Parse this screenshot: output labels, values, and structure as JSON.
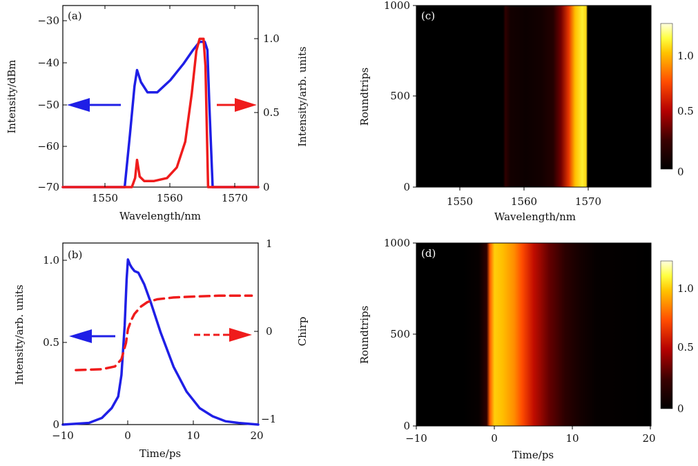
{
  "colors": {
    "blue": "#1f1fe6",
    "red": "#ef1c1c"
  },
  "panels": {
    "a": {
      "label": "(a)",
      "xlabel": "Wavelength/nm",
      "ylabel_left": "Intensity/dBm",
      "ylabel_right": "Intensity/arb. units",
      "xticks": [
        "1550",
        "1560",
        "1570"
      ],
      "yticks_left": [
        "−30",
        "−40",
        "−50",
        "−60",
        "−70"
      ],
      "yticks_right": [
        "1.0",
        "0.5",
        "0"
      ]
    },
    "b": {
      "label": "(b)",
      "xlabel": "Time/ps",
      "ylabel_left": "Intensity/arb. units",
      "ylabel_right": "Chirp",
      "xticks": [
        "−10",
        "0",
        "10",
        "20"
      ],
      "yticks_left": [
        "1.0",
        "0.5",
        "0"
      ],
      "yticks_right": [
        "1",
        "0",
        "−1"
      ]
    },
    "c": {
      "label": "(c)",
      "xlabel": "Wavelength/nm",
      "ylabel": "Roundtrips",
      "xticks": [
        "1550",
        "1560",
        "1570"
      ],
      "yticks": [
        "1000",
        "500",
        "0"
      ],
      "cbar_ticks": [
        "1.0",
        "0.5",
        "0"
      ]
    },
    "d": {
      "label": "(d)",
      "xlabel": "Time/ps",
      "ylabel": "Roundtrips",
      "xticks": [
        "−10",
        "0",
        "10",
        "20"
      ],
      "yticks": [
        "1000",
        "500",
        "0"
      ],
      "cbar_ticks": [
        "1.0",
        "0.5",
        "0"
      ]
    }
  },
  "chart_data": [
    {
      "panel": "a",
      "type": "line",
      "xlim": [
        1545,
        1575
      ],
      "ylim_left": [
        -70,
        -25
      ],
      "ylim_right": [
        0,
        1.2
      ],
      "series": [
        {
          "axis": "left",
          "color": "blue",
          "x": [
            1545,
            1554.5,
            1555.3,
            1556.0,
            1556.4,
            1557.0,
            1558.0,
            1559.5,
            1561.5,
            1563.5,
            1565.0,
            1566.0,
            1566.8,
            1567.2,
            1567.5,
            1568.0,
            1575
          ],
          "y": [
            -70,
            -70,
            -57,
            -45,
            -41,
            -44,
            -46.5,
            -46.5,
            -43.5,
            -39.5,
            -36,
            -34,
            -34,
            -36,
            -50,
            -70,
            -70
          ]
        },
        {
          "axis": "right",
          "color": "red",
          "x": [
            1545,
            1555.6,
            1556.1,
            1556.4,
            1556.8,
            1557.5,
            1559.0,
            1561.0,
            1562.5,
            1563.8,
            1564.8,
            1565.5,
            1566.0,
            1566.6,
            1566.9,
            1567.3,
            1575
          ],
          "y": [
            0,
            0,
            0.06,
            0.18,
            0.07,
            0.04,
            0.04,
            0.06,
            0.13,
            0.3,
            0.62,
            0.9,
            0.98,
            0.98,
            0.8,
            0,
            0
          ]
        }
      ]
    },
    {
      "panel": "b",
      "type": "line",
      "xlim": [
        -10,
        20
      ],
      "ylim_left": [
        0,
        1.1
      ],
      "ylim_right": [
        -1,
        1
      ],
      "series": [
        {
          "axis": "left",
          "color": "blue",
          "dash": false,
          "x": [
            -10,
            -6,
            -4,
            -2.5,
            -1.5,
            -1.0,
            -0.5,
            -0.2,
            0.0,
            0.3,
            0.6,
            1.0,
            1.6,
            2.5,
            3.5,
            5,
            7,
            9,
            11,
            13,
            15,
            17,
            20
          ],
          "y": [
            0,
            0.01,
            0.04,
            0.1,
            0.17,
            0.3,
            0.6,
            0.88,
            1.0,
            0.97,
            0.95,
            0.93,
            0.92,
            0.85,
            0.74,
            0.56,
            0.35,
            0.2,
            0.1,
            0.05,
            0.02,
            0.01,
            0
          ]
        },
        {
          "axis": "right",
          "color": "red",
          "dash": true,
          "x": [
            -8,
            -4,
            -2,
            -1,
            -0.3,
            0.0,
            0.5,
            1.0,
            2.0,
            3.0,
            4.5,
            7,
            10,
            14,
            19
          ],
          "y": [
            -0.4,
            -0.39,
            -0.36,
            -0.28,
            -0.1,
            0.05,
            0.15,
            0.22,
            0.3,
            0.35,
            0.38,
            0.4,
            0.41,
            0.42,
            0.42
          ]
        }
      ]
    },
    {
      "panel": "c",
      "type": "heatmap",
      "xlim": [
        1545,
        1575
      ],
      "ylim": [
        0,
        1000
      ],
      "profile_x": [
        1545,
        1556.1,
        1556.4,
        1557,
        1559,
        1561,
        1562.5,
        1563.5,
        1564.5,
        1565.3,
        1566.2,
        1566.7,
        1566.9,
        1575
      ],
      "profile_v": [
        0,
        0,
        0.2,
        0.08,
        0.05,
        0.08,
        0.15,
        0.35,
        0.65,
        0.95,
        1.05,
        1.0,
        0,
        0
      ],
      "clim": [
        0,
        1.2
      ]
    },
    {
      "panel": "d",
      "type": "heatmap",
      "xlim": [
        -10,
        20
      ],
      "ylim": [
        0,
        1000
      ],
      "profile_x": [
        -10,
        -4,
        -2,
        -1.0,
        -0.6,
        0.0,
        1.0,
        2.5,
        3.5,
        5,
        7,
        9,
        11,
        13,
        20
      ],
      "profile_v": [
        0,
        0,
        0.03,
        0.2,
        0.75,
        0.98,
        0.95,
        0.85,
        0.72,
        0.52,
        0.32,
        0.18,
        0.08,
        0.02,
        0
      ],
      "clim": [
        0,
        1.2
      ]
    }
  ]
}
